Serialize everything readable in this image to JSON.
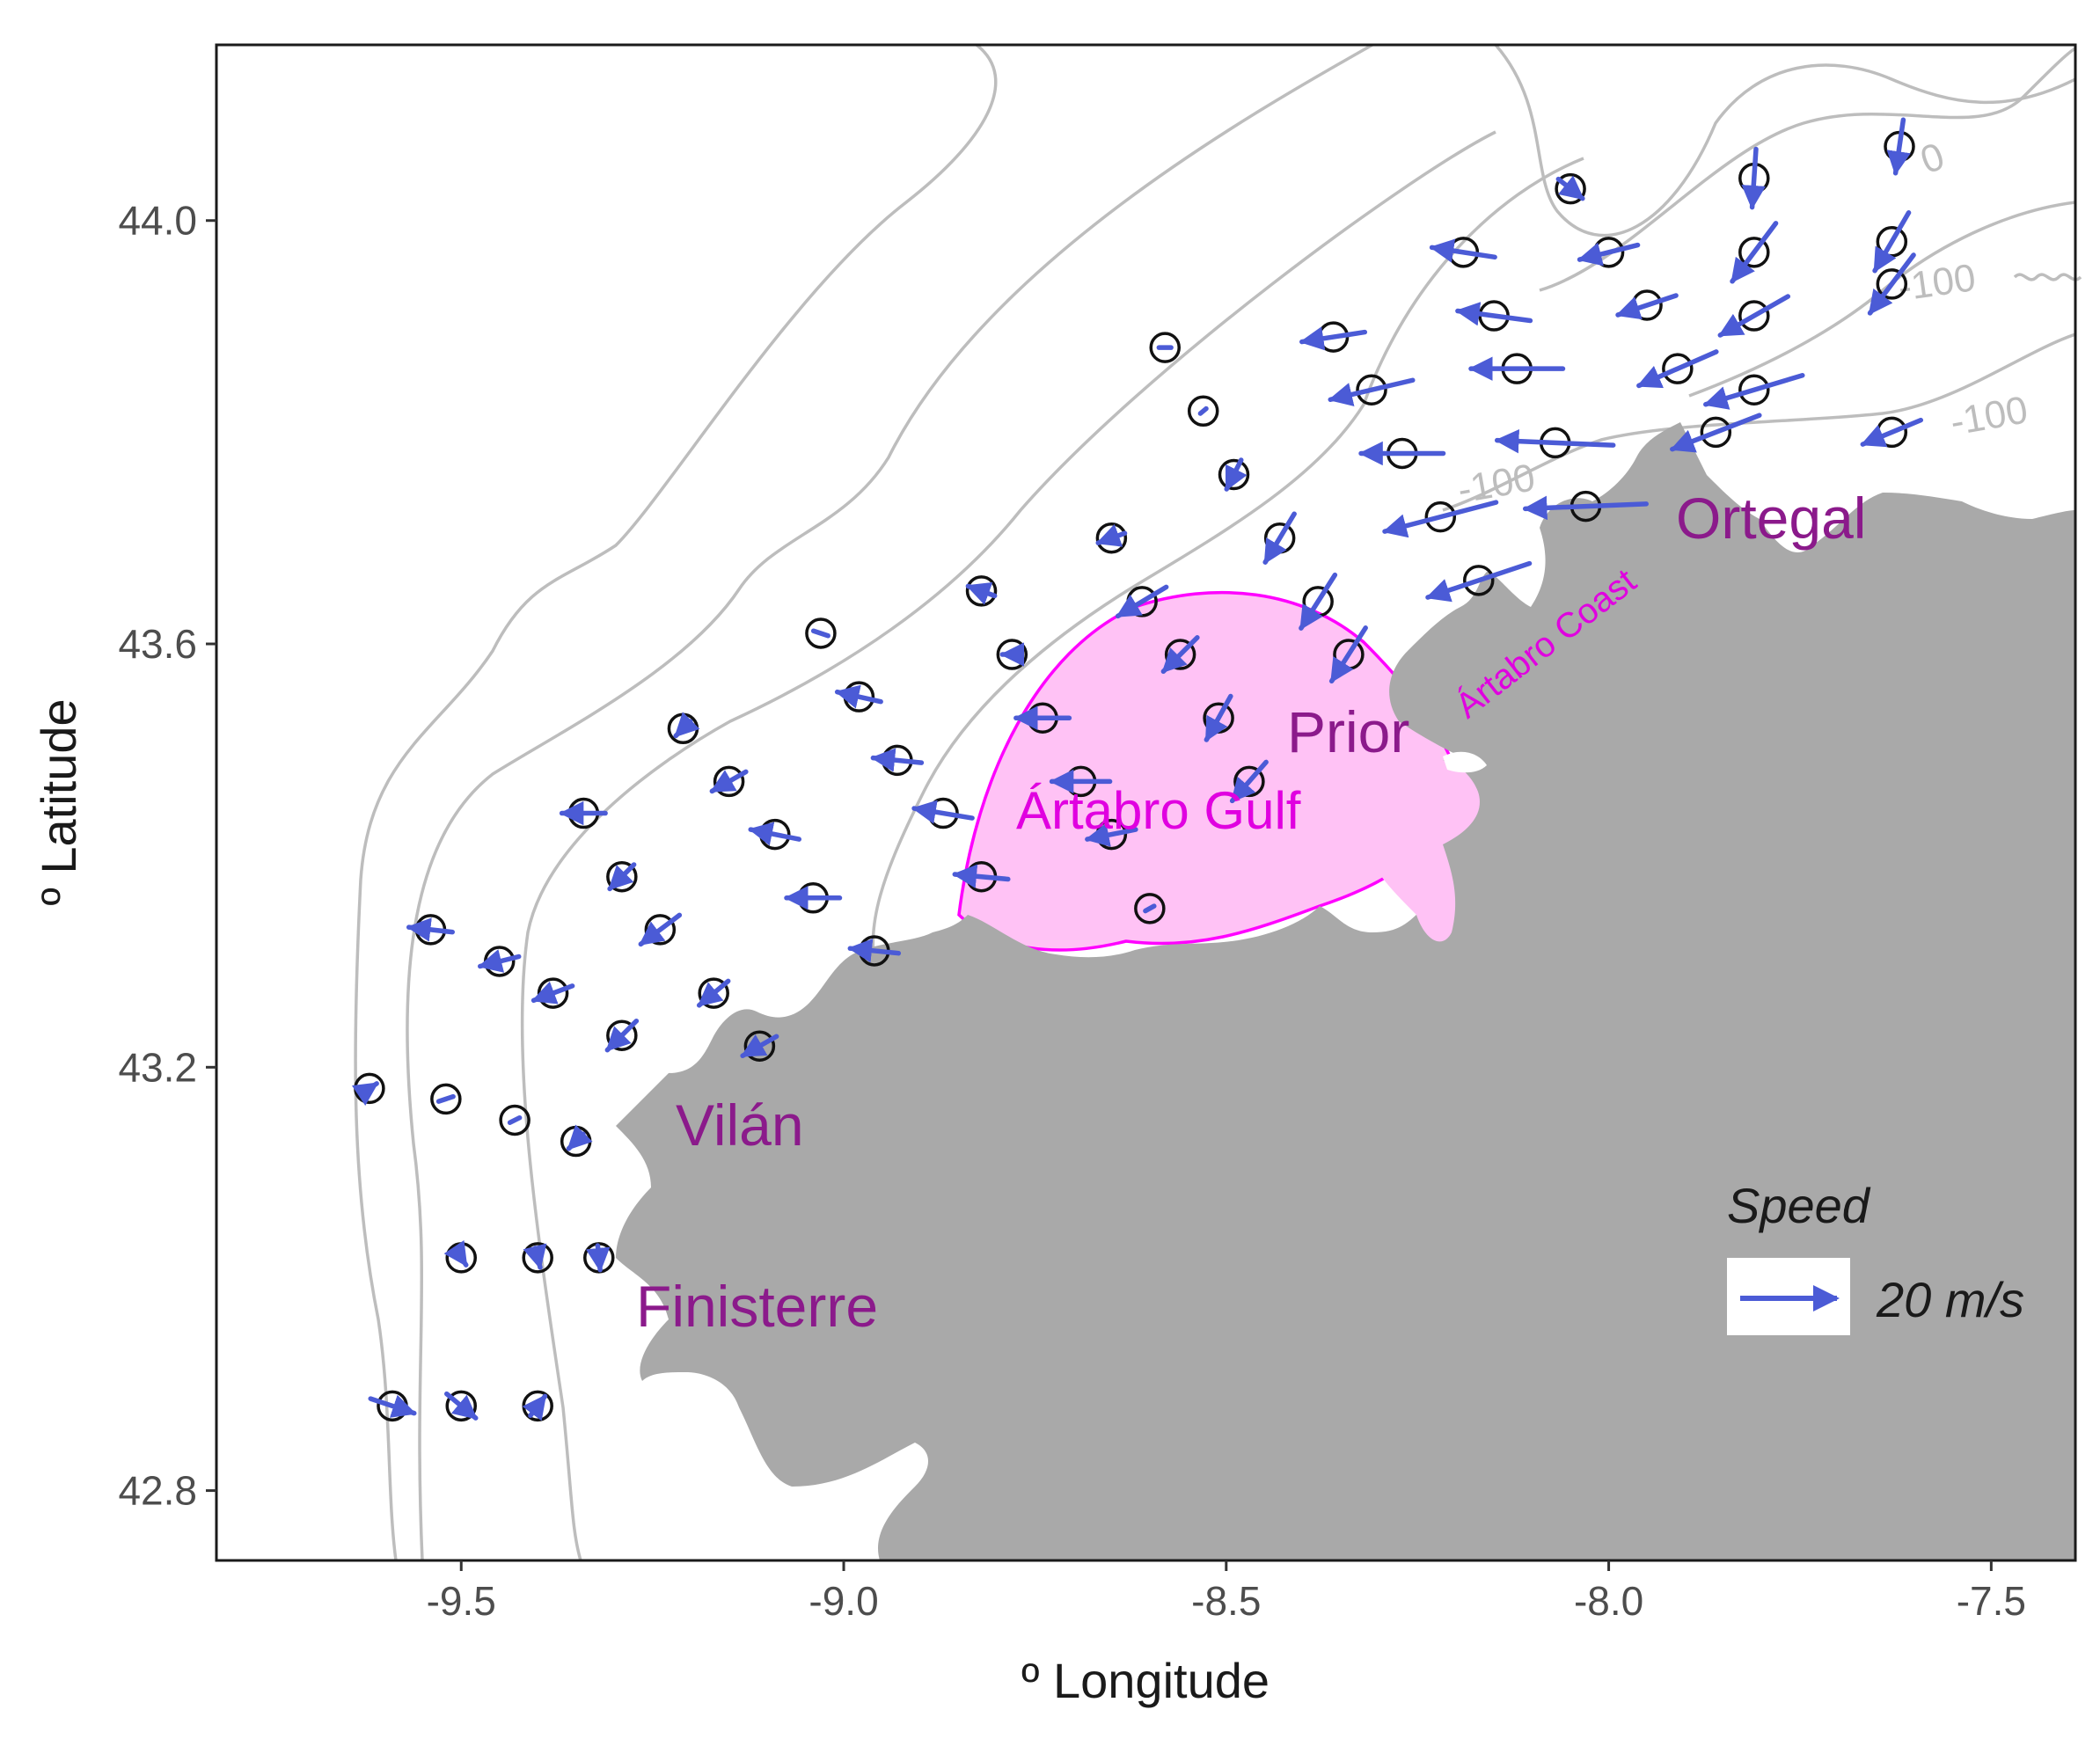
{
  "axes": {
    "x_title": "º Longitude",
    "y_title": "º Latitude",
    "x_ticks": [
      "-9.5",
      "-9.0",
      "-8.5",
      "-8.0",
      "-7.5"
    ],
    "x_tick_values": [
      -9.5,
      -9.0,
      -8.5,
      -8.0,
      -7.5
    ],
    "y_ticks": [
      "42.8",
      "43.2",
      "43.6",
      "44.0"
    ],
    "y_tick_values": [
      42.8,
      43.2,
      43.6,
      44.0
    ],
    "xlim": [
      -9.82,
      -7.39
    ],
    "ylim": [
      42.734,
      44.166
    ]
  },
  "places": {
    "ortegal": "Ortegal",
    "prior": "Prior",
    "vilan": "Vilán",
    "finisterre": "Finisterre",
    "artabro_gulf": "Ártabro Gulf",
    "artabro_coast": "Ártabro Coast"
  },
  "contour_labels": [
    "0",
    "-100",
    "-100",
    "-100"
  ],
  "legend": {
    "title": "Speed",
    "label": "20 m/s"
  },
  "colors": {
    "arrow": "#4b5bd6",
    "land": "#a9a9a9",
    "gulf_fill": "#ffc2f5",
    "gulf_outline": "#ff00ff",
    "contour": "#bdbdbd",
    "place_text": "#8b1a8b",
    "gulf_text": "#e000e0"
  },
  "chart_data": {
    "type": "vector-field",
    "title": "",
    "xlabel": "º Longitude",
    "ylabel": "º Latitude",
    "speed_reference": 20,
    "speed_unit": "m/s",
    "stations": [
      {
        "lon": -7.62,
        "lat": 44.07,
        "u": -1.6,
        "v": -11
      },
      {
        "lon": -7.81,
        "lat": 44.04,
        "u": -0.8,
        "v": -12
      },
      {
        "lon": -8.05,
        "lat": 44.03,
        "u": 5.0,
        "v": -4
      },
      {
        "lon": -7.63,
        "lat": 43.98,
        "u": -7.0,
        "v": -12
      },
      {
        "lon": -7.81,
        "lat": 43.97,
        "u": -9.0,
        "v": -12
      },
      {
        "lon": -8.0,
        "lat": 43.97,
        "u": -12.0,
        "v": -3
      },
      {
        "lon": -8.19,
        "lat": 43.97,
        "u": -13.0,
        "v": 2
      },
      {
        "lon": -7.63,
        "lat": 43.94,
        "u": -9.0,
        "v": -12
      },
      {
        "lon": -7.81,
        "lat": 43.91,
        "u": -14.0,
        "v": -8
      },
      {
        "lon": -7.95,
        "lat": 43.92,
        "u": -12.0,
        "v": -4
      },
      {
        "lon": -8.15,
        "lat": 43.91,
        "u": -15.0,
        "v": 2
      },
      {
        "lon": -8.36,
        "lat": 43.89,
        "u": -13.0,
        "v": -2
      },
      {
        "lon": -8.58,
        "lat": 43.88,
        "u": 2.5,
        "v": 0
      },
      {
        "lon": -7.91,
        "lat": 43.86,
        "u": -16.0,
        "v": -7
      },
      {
        "lon": -8.12,
        "lat": 43.86,
        "u": -19.0,
        "v": 0
      },
      {
        "lon": -8.31,
        "lat": 43.84,
        "u": -17.0,
        "v": -4
      },
      {
        "lon": -8.53,
        "lat": 43.82,
        "u": -1.2,
        "v": -1
      },
      {
        "lon": -7.81,
        "lat": 43.84,
        "u": -20.0,
        "v": -6
      },
      {
        "lon": -7.86,
        "lat": 43.8,
        "u": -18.0,
        "v": -7
      },
      {
        "lon": -7.63,
        "lat": 43.8,
        "u": -12.0,
        "v": -5
      },
      {
        "lon": -8.07,
        "lat": 43.79,
        "u": -24.0,
        "v": 1
      },
      {
        "lon": -8.27,
        "lat": 43.78,
        "u": -17.0,
        "v": 0
      },
      {
        "lon": -8.49,
        "lat": 43.76,
        "u": -3.0,
        "v": -6
      },
      {
        "lon": -8.03,
        "lat": 43.73,
        "u": -25.0,
        "v": -1
      },
      {
        "lon": -8.22,
        "lat": 43.72,
        "u": -23.0,
        "v": -6
      },
      {
        "lon": -8.43,
        "lat": 43.7,
        "u": -6.0,
        "v": -10
      },
      {
        "lon": -8.65,
        "lat": 43.7,
        "u": -5.5,
        "v": -2
      },
      {
        "lon": -8.17,
        "lat": 43.66,
        "u": -21.0,
        "v": -7
      },
      {
        "lon": -8.38,
        "lat": 43.64,
        "u": -7.0,
        "v": -11
      },
      {
        "lon": -8.61,
        "lat": 43.64,
        "u": -10.0,
        "v": -6
      },
      {
        "lon": -8.82,
        "lat": 43.65,
        "u": -5.5,
        "v": 2
      },
      {
        "lon": -8.34,
        "lat": 43.59,
        "u": -7.0,
        "v": -11
      },
      {
        "lon": -8.56,
        "lat": 43.59,
        "u": -7.0,
        "v": -7
      },
      {
        "lon": -8.78,
        "lat": 43.59,
        "u": -4.0,
        "v": 0
      },
      {
        "lon": -9.03,
        "lat": 43.61,
        "u": -3.0,
        "v": 1
      },
      {
        "lon": -8.51,
        "lat": 43.53,
        "u": -5.0,
        "v": -9
      },
      {
        "lon": -8.74,
        "lat": 43.53,
        "u": -11.0,
        "v": 0
      },
      {
        "lon": -8.98,
        "lat": 43.55,
        "u": -9.0,
        "v": 2
      },
      {
        "lon": -9.21,
        "lat": 43.52,
        "u": -3.0,
        "v": -3
      },
      {
        "lon": -8.47,
        "lat": 43.47,
        "u": -7.0,
        "v": -8
      },
      {
        "lon": -8.69,
        "lat": 43.47,
        "u": -12.0,
        "v": 0
      },
      {
        "lon": -8.93,
        "lat": 43.49,
        "u": -10.0,
        "v": 1
      },
      {
        "lon": -9.15,
        "lat": 43.47,
        "u": -7.0,
        "v": -4
      },
      {
        "lon": -9.34,
        "lat": 43.44,
        "u": -9.0,
        "v": 0
      },
      {
        "lon": -8.87,
        "lat": 43.44,
        "u": -12.0,
        "v": 2
      },
      {
        "lon": -8.65,
        "lat": 43.42,
        "u": -10.0,
        "v": -2
      },
      {
        "lon": -9.09,
        "lat": 43.42,
        "u": -10.0,
        "v": 2
      },
      {
        "lon": -9.29,
        "lat": 43.38,
        "u": -5.0,
        "v": -5
      },
      {
        "lon": -8.82,
        "lat": 43.38,
        "u": -11.0,
        "v": 1
      },
      {
        "lon": -9.04,
        "lat": 43.36,
        "u": -11.0,
        "v": 0
      },
      {
        "lon": -8.6,
        "lat": 43.35,
        "u": -1.8,
        "v": -1
      },
      {
        "lon": -9.24,
        "lat": 43.33,
        "u": -8.0,
        "v": -6
      },
      {
        "lon": -9.54,
        "lat": 43.33,
        "u": -9.0,
        "v": 1
      },
      {
        "lon": -8.96,
        "lat": 43.31,
        "u": -10.0,
        "v": 1
      },
      {
        "lon": -9.45,
        "lat": 43.3,
        "u": -8.0,
        "v": -2
      },
      {
        "lon": -9.38,
        "lat": 43.27,
        "u": -8.0,
        "v": -3
      },
      {
        "lon": -9.17,
        "lat": 43.27,
        "u": -6.0,
        "v": -5
      },
      {
        "lon": -9.29,
        "lat": 43.23,
        "u": -6.0,
        "v": -6
      },
      {
        "lon": -9.11,
        "lat": 43.22,
        "u": -7.0,
        "v": -4
      },
      {
        "lon": -9.62,
        "lat": 43.18,
        "u": 3.0,
        "v": 2
      },
      {
        "lon": -9.52,
        "lat": 43.17,
        "u": 3.0,
        "v": 1
      },
      {
        "lon": -9.43,
        "lat": 43.15,
        "u": 2.0,
        "v": 1
      },
      {
        "lon": -9.35,
        "lat": 43.13,
        "u": -3.0,
        "v": -3
      },
      {
        "lon": -9.5,
        "lat": 43.02,
        "u": 2.0,
        "v": -3
      },
      {
        "lon": -9.4,
        "lat": 43.02,
        "u": 1.0,
        "v": -4
      },
      {
        "lon": -9.32,
        "lat": 43.02,
        "u": 0.5,
        "v": -5
      },
      {
        "lon": -9.59,
        "lat": 42.88,
        "u": 9.0,
        "v": -3
      },
      {
        "lon": -9.5,
        "lat": 42.88,
        "u": 6.0,
        "v": -5
      },
      {
        "lon": -9.4,
        "lat": 42.88,
        "u": 3.0,
        "v": 4
      }
    ]
  }
}
